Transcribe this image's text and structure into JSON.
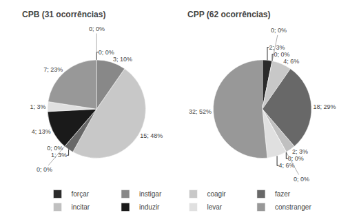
{
  "chart_data": [
    {
      "type": "pie",
      "title": "CPB (31 ocorrências)",
      "categories": [
        "forçar",
        "instigar",
        "coagir",
        "fazer",
        "incitar",
        "induzir",
        "levar",
        "constranger"
      ],
      "values": [
        0,
        3,
        15,
        1,
        0,
        4,
        1,
        7
      ],
      "value_labels": [
        "0; 0%",
        "3; 10%",
        "15; 48%",
        "1; 3%",
        "0; 0%",
        "4; 13%",
        "1; 3%",
        "7; 23%"
      ],
      "colors": [
        "#2b2b2b",
        "#888888",
        "#c8c8c8",
        "#686868",
        "#c0c0c0",
        "#1a1a1a",
        "#e0e0e0",
        "#989898"
      ],
      "legend": "bottom"
    },
    {
      "type": "pie",
      "title": "CPP (62 ocorrências)",
      "categories": [
        "forçar",
        "instigar",
        "coagir",
        "fazer",
        "incitar",
        "induzir",
        "levar",
        "constranger"
      ],
      "values": [
        2,
        0,
        4,
        18,
        2,
        0,
        4,
        32
      ],
      "value_labels": [
        "2; 3%",
        "0; 0%",
        "4; 6%",
        "18; 29%",
        "2; 3%",
        "0; 0%",
        "4; 6%",
        "32; 52%"
      ],
      "colors": [
        "#2b2b2b",
        "#888888",
        "#c8c8c8",
        "#686868",
        "#c0c0c0",
        "#1a1a1a",
        "#e0e0e0",
        "#989898"
      ],
      "legend": "bottom"
    }
  ]
}
